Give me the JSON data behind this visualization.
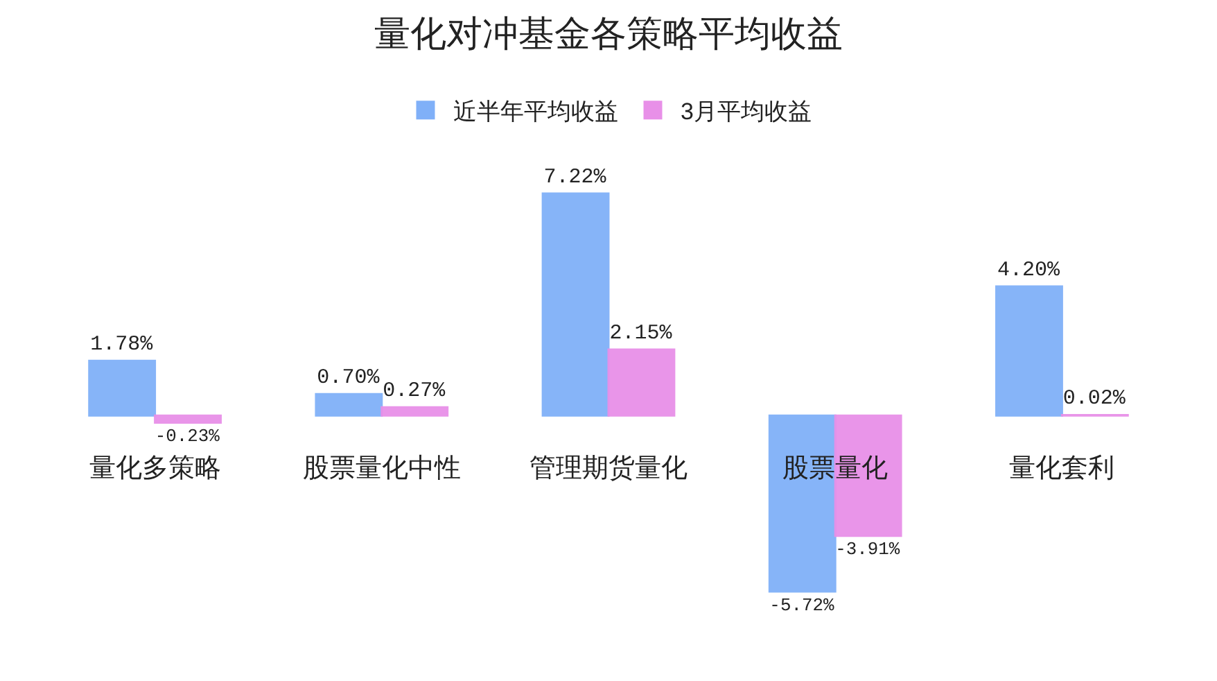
{
  "chart_data": {
    "type": "bar",
    "title": "量化对冲基金各策略平均收益",
    "categories": [
      "量化多策略",
      "股票量化中性",
      "管理期货量化",
      "股票量化",
      "量化套利"
    ],
    "series": [
      {
        "name": "近半年平均收益",
        "color": "#80b0f8",
        "values": [
          1.78,
          0.7,
          7.22,
          -5.72,
          4.2
        ],
        "value_labels": [
          "1.78%",
          "0.70%",
          "7.22%",
          "-5.72%",
          "4.20%"
        ]
      },
      {
        "name": "3月平均收益",
        "color": "#e890e8",
        "values": [
          -0.23,
          0.27,
          2.15,
          -3.91,
          0.02
        ],
        "value_labels": [
          "-0.23%",
          "0.27%",
          "2.15%",
          "-3.91%",
          "0.02%"
        ]
      }
    ],
    "legend": "top"
  }
}
